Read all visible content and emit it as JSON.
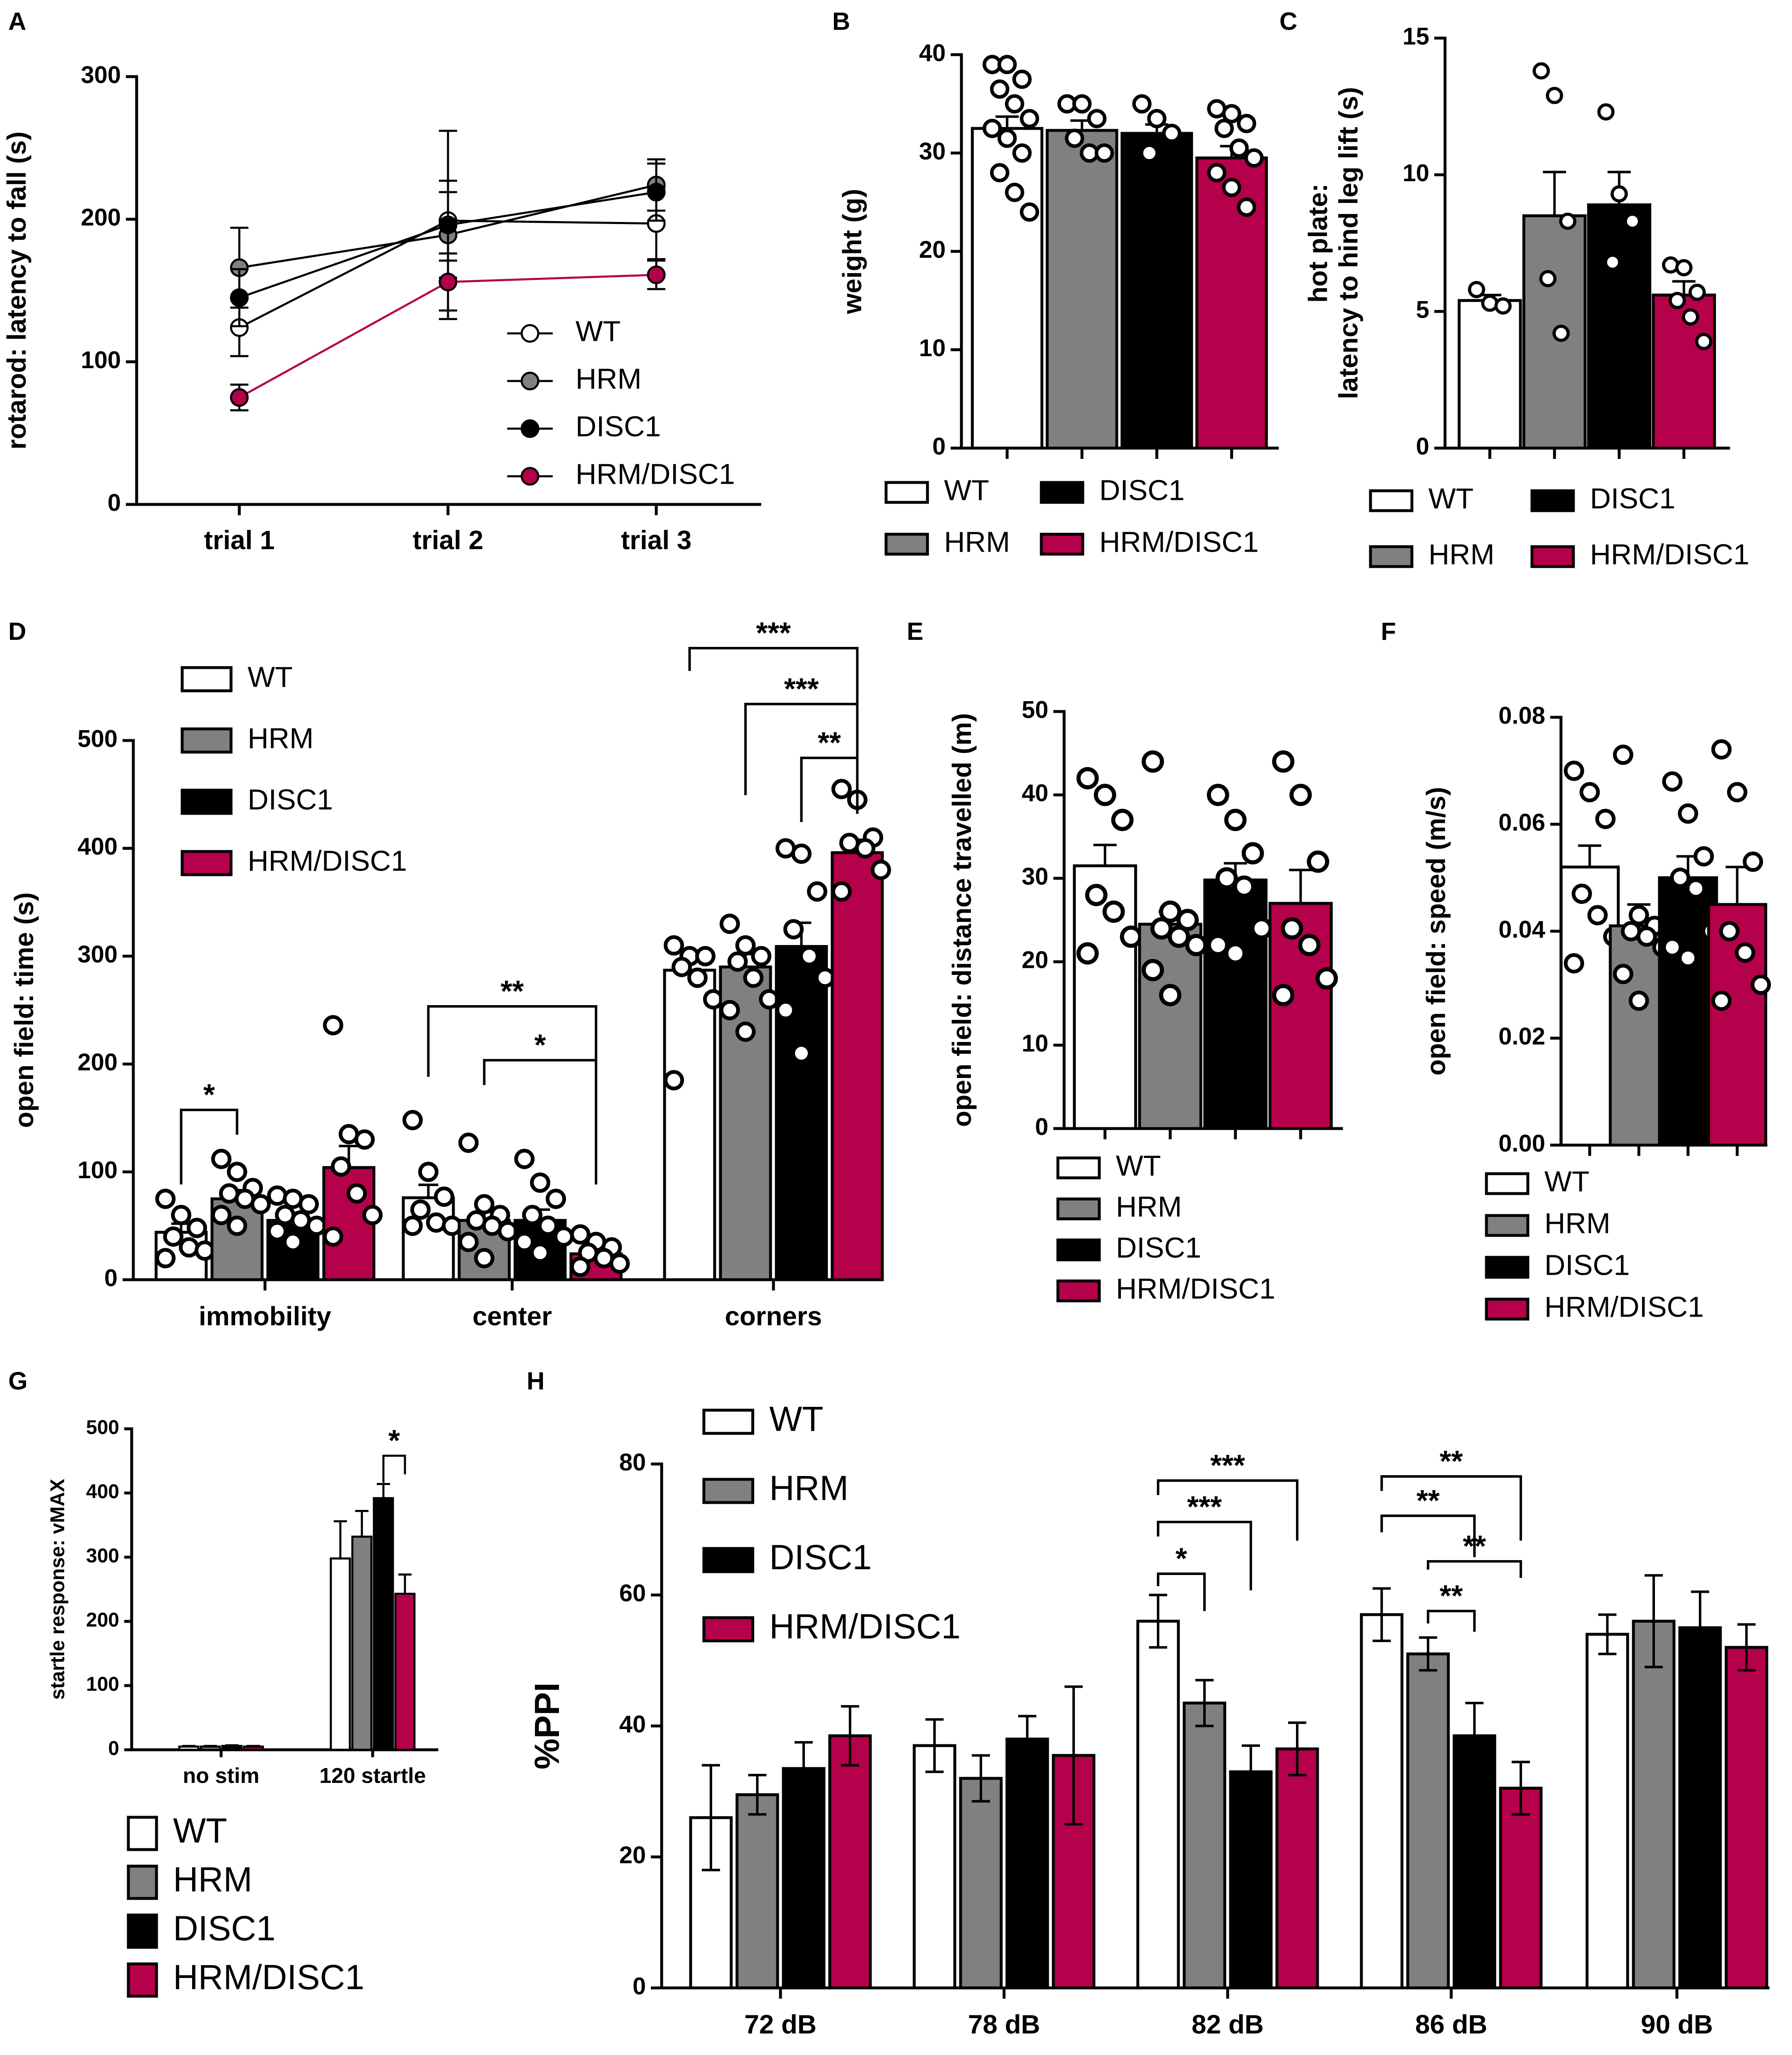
{
  "colors": {
    "WT": "#ffffff",
    "HRM": "#808080",
    "DISC1": "#000000",
    "HRM/DISC1": "#b5004b"
  },
  "groups": [
    "WT",
    "HRM",
    "DISC1",
    "HRM/DISC1"
  ],
  "chart_data": [
    {
      "panel": "A",
      "type": "line",
      "ylabel": "rotarod: latency to fall (s)",
      "categories": [
        "trial 1",
        "trial 2",
        "trial 3"
      ],
      "ylim": [
        0,
        300
      ],
      "yticks": [
        "0",
        "100",
        "200",
        "300"
      ],
      "series": [
        {
          "name": "WT",
          "values": [
            124,
            199,
            197
          ],
          "err": [
            20,
            28,
            25
          ]
        },
        {
          "name": "HRM",
          "values": [
            166,
            189,
            224
          ],
          "err": [
            28,
            30,
            18
          ]
        },
        {
          "name": "DISC1",
          "values": [
            145,
            196,
            219
          ],
          "err": [
            20,
            66,
            20
          ]
        },
        {
          "name": "HRM/DISC1",
          "values": [
            75,
            156,
            161
          ],
          "err": [
            9,
            20,
            10
          ]
        }
      ],
      "legend": [
        "WT",
        "HRM",
        "DISC1",
        "HRM/DISC1"
      ]
    },
    {
      "panel": "B",
      "type": "bar",
      "ylabel": "weight (g)",
      "ylim": [
        0,
        40
      ],
      "yticks": [
        "0",
        "10",
        "20",
        "30",
        "40"
      ],
      "series": [
        {
          "name": "WT",
          "value": 32.5,
          "err": 1.2,
          "points": [
            39,
            39,
            37.5,
            36.5,
            35,
            33.5,
            32.5,
            31.5,
            30,
            28,
            26,
            24
          ]
        },
        {
          "name": "HRM",
          "value": 32.3,
          "err": 1,
          "points": [
            35,
            35,
            33.5,
            31.5,
            30,
            30
          ]
        },
        {
          "name": "DISC1",
          "value": 32,
          "err": 0.9,
          "points": [
            35,
            33.5,
            32,
            30
          ]
        },
        {
          "name": "HRM/DISC1",
          "value": 29.5,
          "err": 1.2,
          "points": [
            34.5,
            34,
            33,
            32.5,
            30.5,
            29.5,
            28,
            26.5,
            24.5
          ]
        }
      ],
      "legend": [
        "WT",
        "DISC1",
        "HRM",
        "HRM/DISC1"
      ]
    },
    {
      "panel": "C",
      "type": "bar",
      "ylabel": [
        "hot plate:",
        "latency to hind leg lift (s)"
      ],
      "ylim": [
        0,
        15
      ],
      "yticks": [
        "0",
        "5",
        "10",
        "15"
      ],
      "series": [
        {
          "name": "WT",
          "value": 5.4,
          "err": 0.2,
          "points": [
            5.8,
            5.3,
            5.2
          ]
        },
        {
          "name": "HRM",
          "value": 8.5,
          "err": 1.6,
          "points": [
            13.8,
            12.9,
            8.3,
            6.2,
            4.2
          ]
        },
        {
          "name": "DISC1",
          "value": 8.9,
          "err": 1.2,
          "points": [
            12.3,
            9.3,
            8.3,
            6.8
          ]
        },
        {
          "name": "HRM/DISC1",
          "value": 5.6,
          "err": 0.5,
          "points": [
            6.7,
            6.6,
            5.7,
            5.4,
            4.8,
            3.9
          ]
        }
      ],
      "legend": [
        "WT",
        "DISC1",
        "HRM",
        "HRM/DISC1"
      ]
    },
    {
      "panel": "D",
      "type": "bar",
      "ylabel": "open field: time (s)",
      "categories": [
        "immobility",
        "center",
        "corners"
      ],
      "ylim": [
        0,
        500
      ],
      "yticks": [
        "0",
        "100",
        "200",
        "300",
        "400",
        "500"
      ],
      "series": [
        {
          "name": "WT",
          "values": [
            44,
            76,
            287
          ],
          "err": [
            8,
            12,
            14
          ],
          "points": [
            [
              75,
              60,
              48,
              40,
              30,
              27,
              20
            ],
            [
              148,
              100,
              77,
              65,
              53,
              50,
              50
            ],
            [
              310,
              300,
              300,
              290,
              280,
              260,
              185
            ]
          ]
        },
        {
          "name": "HRM",
          "values": [
            75,
            55,
            290
          ],
          "err": [
            8,
            8,
            12
          ],
          "points": [
            [
              112,
              100,
              85,
              80,
              75,
              70,
              60,
              50
            ],
            [
              127,
              70,
              60,
              55,
              50,
              45,
              35,
              20
            ],
            [
              330,
              310,
              300,
              295,
              280,
              260,
              250,
              230
            ]
          ]
        },
        {
          "name": "DISC1",
          "values": [
            55,
            55,
            309
          ],
          "err": [
            7,
            10,
            22
          ],
          "points": [
            [
              78,
              75,
              70,
              60,
              55,
              50,
              45,
              35
            ],
            [
              112,
              90,
              75,
              60,
              50,
              40,
              35,
              25
            ],
            [
              400,
              395,
              360,
              325,
              300,
              280,
              250,
              210
            ]
          ]
        },
        {
          "name": "HRM/DISC1",
          "values": [
            104,
            24,
            396
          ],
          "err": [
            20,
            4,
            12
          ],
          "points": [
            [
              236,
              135,
              130,
              105,
              80,
              60,
              40
            ],
            [
              42,
              35,
              30,
              25,
              20,
              15,
              12
            ],
            [
              455,
              445,
              410,
              405,
              400,
              380,
              360
            ]
          ]
        }
      ],
      "significance": [
        {
          "label": "*",
          "cat": 0,
          "from": "WT",
          "to": "HRM"
        },
        {
          "label": "**",
          "cat": 1,
          "from": "WT",
          "to": "HRM/DISC1"
        },
        {
          "label": "*",
          "cat": 1,
          "from": "HRM",
          "to": "HRM/DISC1"
        },
        {
          "label": "***",
          "cat": 2,
          "from": "WT",
          "to": "HRM/DISC1"
        },
        {
          "label": "***",
          "cat": 2,
          "from": "HRM",
          "to": "HRM/DISC1"
        },
        {
          "label": "**",
          "cat": 2,
          "from": "DISC1",
          "to": "HRM/DISC1"
        }
      ],
      "legend": [
        "WT",
        "HRM",
        "DISC1",
        "HRM/DISC1"
      ]
    },
    {
      "panel": "E",
      "type": "bar",
      "ylabel": "open field: distance travelled (m)",
      "ylim": [
        0,
        50
      ],
      "yticks": [
        "0",
        "10",
        "20",
        "30",
        "40",
        "50"
      ],
      "series": [
        {
          "name": "WT",
          "value": 31.5,
          "err": 2.5,
          "points": [
            42,
            40,
            37,
            28,
            26,
            23,
            21
          ]
        },
        {
          "name": "HRM",
          "value": 24.5,
          "err": 1.5,
          "points": [
            44,
            26,
            25,
            24,
            23,
            22,
            19,
            16
          ]
        },
        {
          "name": "DISC1",
          "value": 29.8,
          "err": 2,
          "points": [
            40,
            37,
            33,
            30,
            29,
            24,
            22,
            21
          ]
        },
        {
          "name": "HRM/DISC1",
          "value": 27,
          "err": 4,
          "points": [
            44,
            40,
            32,
            24,
            22,
            18,
            16
          ]
        }
      ],
      "legend": [
        "WT",
        "HRM",
        "DISC1",
        "HRM/DISC1"
      ]
    },
    {
      "panel": "F",
      "type": "bar",
      "ylabel": "open field: speed (m/s)",
      "ylim": [
        0,
        0.08
      ],
      "yticks": [
        "0.00",
        "0.02",
        "0.04",
        "0.06",
        "0.08"
      ],
      "series": [
        {
          "name": "WT",
          "value": 0.052,
          "err": 0.004,
          "points": [
            0.07,
            0.066,
            0.061,
            0.047,
            0.043,
            0.039,
            0.034
          ]
        },
        {
          "name": "HRM",
          "value": 0.041,
          "err": 0.004,
          "points": [
            0.073,
            0.043,
            0.041,
            0.04,
            0.039,
            0.037,
            0.032,
            0.027
          ]
        },
        {
          "name": "DISC1",
          "value": 0.05,
          "err": 0.004,
          "points": [
            0.068,
            0.062,
            0.054,
            0.05,
            0.048,
            0.04,
            0.037,
            0.035
          ]
        },
        {
          "name": "HRM/DISC1",
          "value": 0.045,
          "err": 0.007,
          "points": [
            0.074,
            0.066,
            0.053,
            0.04,
            0.036,
            0.03,
            0.027
          ]
        }
      ],
      "legend": [
        "WT",
        "HRM",
        "DISC1",
        "HRM/DISC1"
      ]
    },
    {
      "panel": "G",
      "type": "bar",
      "ylabel": "startle response: vMAX",
      "categories": [
        "no stim",
        "120 startle"
      ],
      "ylim": [
        0,
        500
      ],
      "yticks": [
        "0",
        "100",
        "200",
        "300",
        "400",
        "500"
      ],
      "series": [
        {
          "name": "WT",
          "values": [
            5,
            298
          ],
          "err": [
            1,
            58
          ]
        },
        {
          "name": "HRM",
          "values": [
            5,
            332
          ],
          "err": [
            1,
            40
          ]
        },
        {
          "name": "DISC1",
          "values": [
            6,
            392
          ],
          "err": [
            1,
            22
          ]
        },
        {
          "name": "HRM/DISC1",
          "values": [
            5,
            243
          ],
          "err": [
            1,
            30
          ]
        }
      ],
      "significance": [
        {
          "label": "*",
          "cat": 1,
          "from": "DISC1",
          "to": "HRM/DISC1"
        }
      ],
      "legend": [
        "WT",
        "HRM",
        "DISC1",
        "HRM/DISC1"
      ]
    },
    {
      "panel": "H",
      "type": "bar",
      "ylabel": "%PPI",
      "categories": [
        "72 dB",
        "78 dB",
        "82 dB",
        "86 dB",
        "90 dB"
      ],
      "ylim": [
        0,
        80
      ],
      "yticks": [
        "0",
        "20",
        "40",
        "60",
        "80"
      ],
      "series": [
        {
          "name": "WT",
          "values": [
            26,
            37,
            56,
            57,
            54
          ],
          "err": [
            8,
            4,
            4,
            4,
            3
          ]
        },
        {
          "name": "HRM",
          "values": [
            29.5,
            32,
            43.5,
            51,
            56
          ],
          "err": [
            3,
            3.5,
            3.5,
            2.5,
            7
          ]
        },
        {
          "name": "DISC1",
          "values": [
            33.5,
            38,
            33,
            38.5,
            55
          ],
          "err": [
            4,
            3.5,
            4,
            5,
            5.5
          ]
        },
        {
          "name": "HRM/DISC1",
          "values": [
            38.5,
            35.5,
            36.5,
            30.5,
            52
          ],
          "err": [
            4.5,
            10.5,
            4,
            4,
            3.5
          ]
        }
      ],
      "significance": [
        {
          "label": "***",
          "cat": 2,
          "from": "WT",
          "to": "HRM/DISC1"
        },
        {
          "label": "***",
          "cat": 2,
          "from": "WT",
          "to": "DISC1"
        },
        {
          "label": "*",
          "cat": 2,
          "from": "WT",
          "to": "HRM"
        },
        {
          "label": "**",
          "cat": 3,
          "from": "WT",
          "to": "HRM/DISC1"
        },
        {
          "label": "**",
          "cat": 3,
          "from": "WT",
          "to": "DISC1"
        },
        {
          "label": "**",
          "cat": 3,
          "from": "HRM",
          "to": "HRM/DISC1"
        },
        {
          "label": "**",
          "cat": 3,
          "from": "HRM",
          "to": "DISC1"
        }
      ],
      "legend": [
        "WT",
        "HRM",
        "DISC1",
        "HRM/DISC1"
      ]
    }
  ]
}
